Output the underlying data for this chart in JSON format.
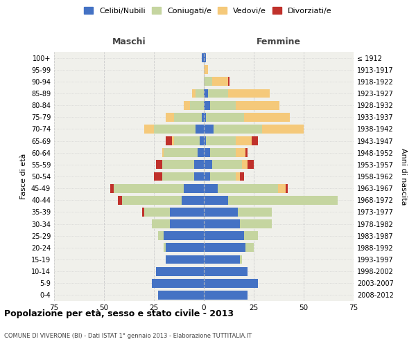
{
  "age_groups": [
    "0-4",
    "5-9",
    "10-14",
    "15-19",
    "20-24",
    "25-29",
    "30-34",
    "35-39",
    "40-44",
    "45-49",
    "50-54",
    "55-59",
    "60-64",
    "65-69",
    "70-74",
    "75-79",
    "80-84",
    "85-89",
    "90-94",
    "95-99",
    "100+"
  ],
  "birth_years": [
    "2008-2012",
    "2003-2007",
    "1998-2002",
    "1993-1997",
    "1988-1992",
    "1983-1987",
    "1978-1982",
    "1973-1977",
    "1968-1972",
    "1963-1967",
    "1958-1962",
    "1953-1957",
    "1948-1952",
    "1943-1947",
    "1938-1942",
    "1933-1937",
    "1928-1932",
    "1923-1927",
    "1918-1922",
    "1913-1917",
    "≤ 1912"
  ],
  "male": {
    "celibi": [
      23,
      26,
      24,
      19,
      19,
      20,
      17,
      17,
      11,
      10,
      5,
      5,
      3,
      2,
      4,
      1,
      0,
      0,
      0,
      0,
      1
    ],
    "coniugati": [
      0,
      0,
      0,
      0,
      1,
      3,
      9,
      13,
      30,
      35,
      16,
      16,
      17,
      13,
      21,
      14,
      7,
      4,
      0,
      0,
      0
    ],
    "vedovi": [
      0,
      0,
      0,
      0,
      0,
      0,
      0,
      0,
      0,
      0,
      0,
      0,
      1,
      1,
      5,
      4,
      3,
      2,
      0,
      0,
      0
    ],
    "divorziati": [
      0,
      0,
      0,
      0,
      0,
      0,
      0,
      1,
      2,
      2,
      4,
      3,
      0,
      3,
      0,
      0,
      0,
      0,
      0,
      0,
      0
    ]
  },
  "female": {
    "nubili": [
      22,
      27,
      22,
      18,
      21,
      20,
      18,
      17,
      12,
      7,
      3,
      4,
      3,
      1,
      5,
      1,
      3,
      2,
      0,
      0,
      1
    ],
    "coniugate": [
      0,
      0,
      0,
      1,
      4,
      7,
      16,
      17,
      55,
      30,
      13,
      15,
      13,
      15,
      24,
      19,
      13,
      10,
      4,
      0,
      0
    ],
    "vedove": [
      0,
      0,
      0,
      0,
      0,
      0,
      0,
      0,
      0,
      4,
      2,
      3,
      5,
      8,
      21,
      23,
      22,
      21,
      8,
      2,
      0
    ],
    "divorziate": [
      0,
      0,
      0,
      0,
      0,
      0,
      0,
      0,
      0,
      1,
      2,
      3,
      1,
      3,
      0,
      0,
      0,
      0,
      1,
      0,
      0
    ]
  },
  "colors": {
    "celibi": "#4472C4",
    "coniugati": "#C5D5A0",
    "vedovi": "#F5C97A",
    "divorziati": "#C0312B"
  },
  "legend_labels": [
    "Celibi/Nubili",
    "Coniugati/e",
    "Vedovi/e",
    "Divorziati/e"
  ],
  "title": "Popolazione per età, sesso e stato civile - 2013",
  "subtitle": "COMUNE DI VIVERONE (BI) - Dati ISTAT 1° gennaio 2013 - Elaborazione TUTTITALIA.IT",
  "xlabel_left": "Maschi",
  "xlabel_right": "Femmine",
  "ylabel_left": "Fasce di età",
  "ylabel_right": "Anni di nascita",
  "xlim": 75,
  "background_color": "#ffffff",
  "plot_bg": "#f0f0eb",
  "grid_color": "#cccccc"
}
